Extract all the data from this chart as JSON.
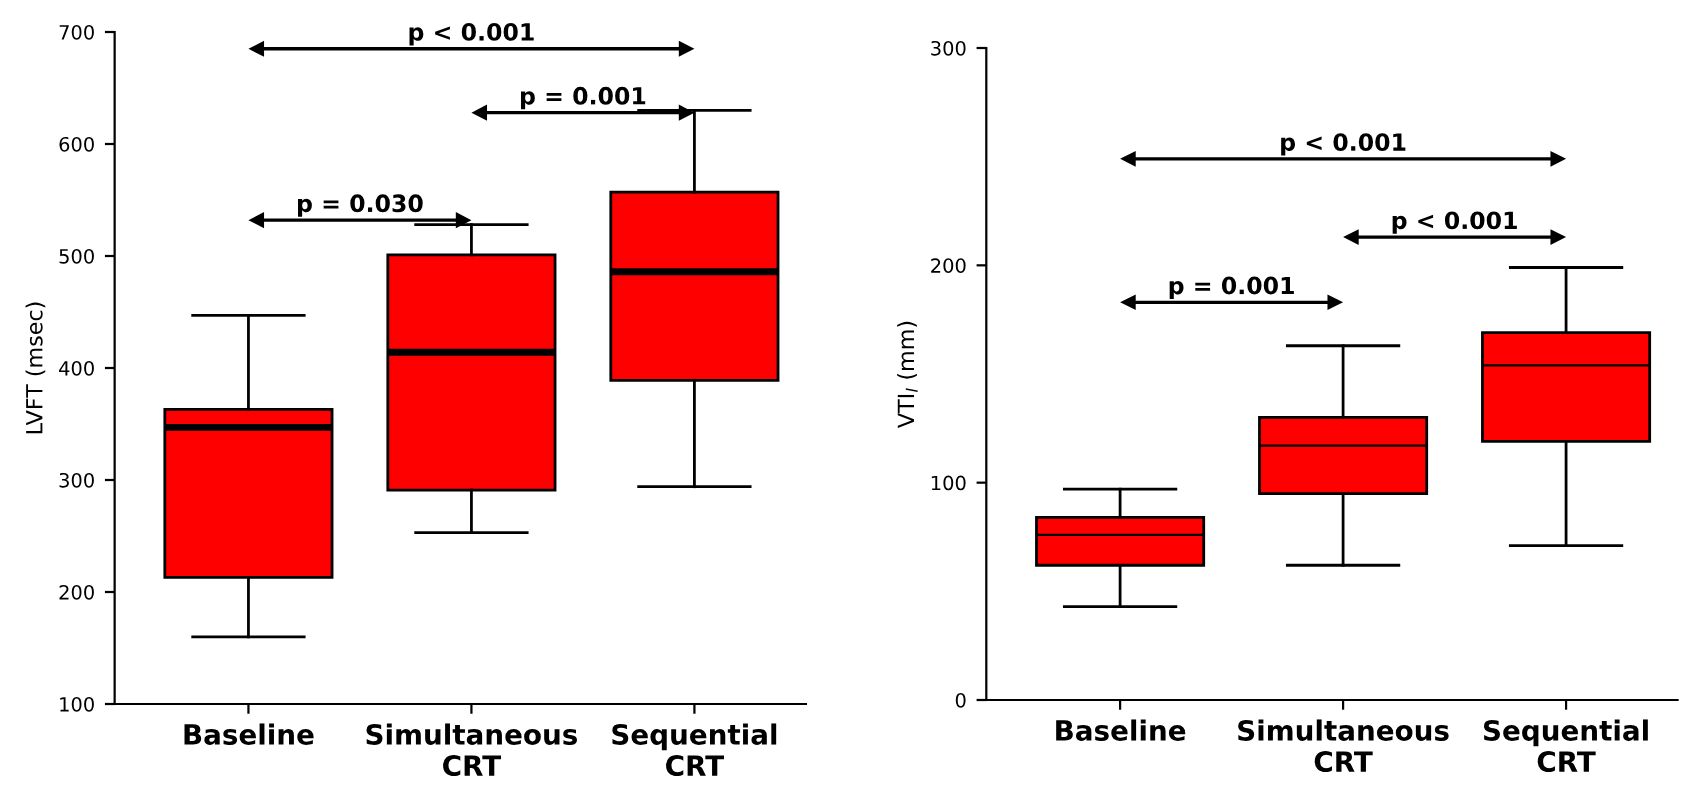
{
  "chart_data": [
    {
      "type": "box",
      "ylabel": "LVFT (msec)",
      "categories": [
        "Baseline",
        "Simultaneous\nCRT",
        "Sequential\nCRT"
      ],
      "color": "#ff0000",
      "ylim": [
        100,
        700
      ],
      "yticks": [
        100,
        200,
        300,
        400,
        500,
        600,
        700
      ],
      "grid": false,
      "boxes": [
        {
          "low": 160,
          "q1": 213,
          "median": 347,
          "q3": 363,
          "high": 447
        },
        {
          "low": 253,
          "q1": 291,
          "median": 414,
          "q3": 501,
          "high": 528
        },
        {
          "low": 294,
          "q1": 389,
          "median": 486,
          "q3": 557,
          "high": 630
        }
      ],
      "annotations": [
        "p < 0.001",
        "p = 0.001",
        "p = 0.030"
      ]
    },
    {
      "type": "box",
      "ylabel": "VTI$_{l}$ (mm)",
      "categories": [
        "Baseline",
        "Simultaneous\nCRT",
        "Sequential\nCRT"
      ],
      "color": "#ff0000",
      "ylim": [
        0,
        300
      ],
      "yticks": [
        0,
        100,
        200,
        300
      ],
      "grid": false,
      "boxes": [
        {
          "low": 43,
          "q1": 62,
          "median": 76,
          "q3": 84,
          "high": 97
        },
        {
          "low": 62,
          "q1": 95,
          "median": 117,
          "q3": 130,
          "high": 163
        },
        {
          "low": 71,
          "q1": 119,
          "median": 154,
          "q3": 169,
          "high": 199
        }
      ],
      "annotations": [
        "p < 0.001",
        "p < 0.001",
        "p = 0.001"
      ]
    }
  ]
}
